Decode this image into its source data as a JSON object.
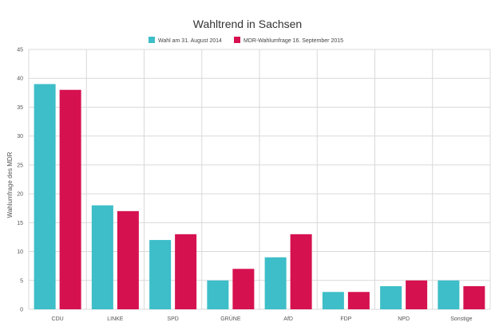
{
  "chart_data": {
    "type": "bar",
    "title": "Wahltrend in Sachsen",
    "xlabel": "",
    "ylabel": "Wahlumfrage des MDR",
    "ylim": [
      0,
      45
    ],
    "yticks": [
      0,
      5,
      10,
      15,
      20,
      25,
      30,
      35,
      40,
      45
    ],
    "grid": true,
    "legend_position": "top-center",
    "categories": [
      "CDU",
      "LINKE",
      "SPD",
      "GRÜNE",
      "AfD",
      "FDP",
      "NPD",
      "Sonstige"
    ],
    "series": [
      {
        "name": "Wahl am 31. August 2014",
        "color": "#3dbec8",
        "values": [
          39,
          18,
          12,
          5,
          9,
          3,
          4,
          5
        ]
      },
      {
        "name": "MDR-Wahlumfrage 16. September 2015",
        "color": "#d6114f",
        "values": [
          38,
          17,
          13,
          7,
          13,
          3,
          5,
          4
        ]
      }
    ]
  }
}
